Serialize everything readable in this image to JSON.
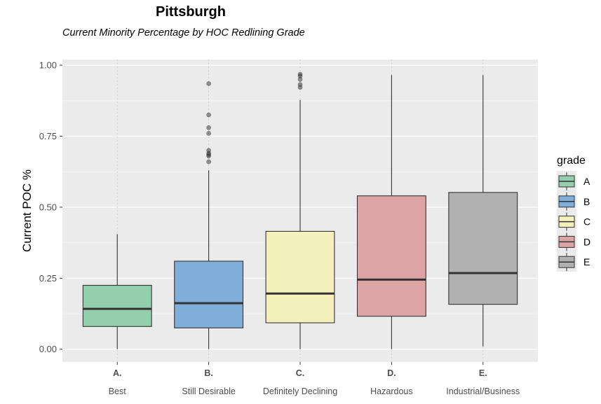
{
  "chart_data": {
    "type": "box",
    "title": "Pittsburgh",
    "subtitle": "Current Minority Percentage by HOC Redlining Grade",
    "xlabel": "",
    "ylabel": "Current POC %",
    "ylim": [
      -0.045,
      1.02
    ],
    "yticks": [
      0.0,
      0.25,
      0.5,
      0.75,
      1.0
    ],
    "ytick_labels": [
      "0.00",
      "0.25",
      "0.50",
      "0.75",
      "1.00"
    ],
    "grid": true,
    "legend": {
      "title": "grade",
      "position": "right"
    },
    "categories": [
      {
        "code": "A.",
        "label": "Best"
      },
      {
        "code": "B.",
        "label": "Still Desirable"
      },
      {
        "code": "C.",
        "label": "Definitely Declining"
      },
      {
        "code": "D.",
        "label": "Hazardous"
      },
      {
        "code": "E.",
        "label": "Industrial/Business"
      }
    ],
    "series": [
      {
        "name": "A",
        "color": "#93cfad",
        "min": 0.0,
        "q1": 0.08,
        "median": 0.142,
        "q3": 0.225,
        "max": 0.405,
        "outliers": []
      },
      {
        "name": "B",
        "color": "#80aedb",
        "min": 0.0,
        "q1": 0.075,
        "median": 0.162,
        "q3": 0.31,
        "max": 0.63,
        "outliers": [
          0.66,
          0.68,
          0.685,
          0.69,
          0.7,
          0.76,
          0.78,
          0.825,
          0.935
        ]
      },
      {
        "name": "C",
        "color": "#f5f1bc",
        "min": 0.0,
        "q1": 0.093,
        "median": 0.196,
        "q3": 0.415,
        "max": 0.878,
        "outliers": [
          0.922,
          0.932,
          0.95,
          0.962,
          0.968
        ]
      },
      {
        "name": "D",
        "color": "#dca4a4",
        "min": 0.0,
        "q1": 0.116,
        "median": 0.245,
        "q3": 0.54,
        "max": 0.965,
        "outliers": []
      },
      {
        "name": "E",
        "color": "#b1b1b1",
        "min": 0.01,
        "q1": 0.158,
        "median": 0.268,
        "q3": 0.552,
        "max": 0.965,
        "outliers": []
      }
    ]
  }
}
